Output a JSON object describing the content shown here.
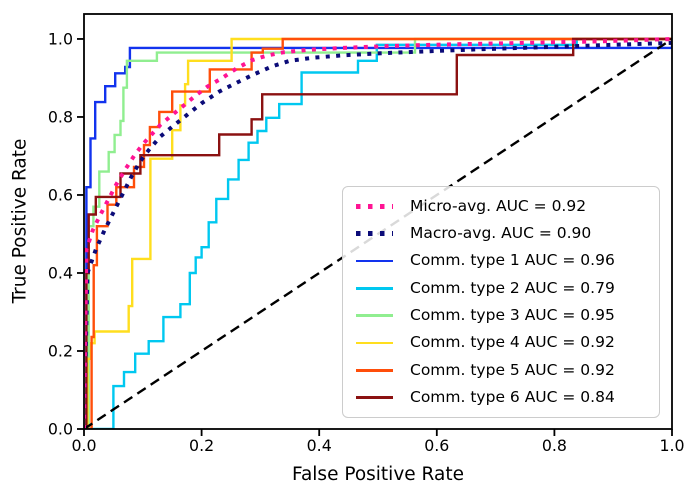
{
  "chart_data": {
    "type": "line",
    "title": "",
    "xlabel": "False Positive Rate",
    "ylabel": "True Positive Rate",
    "xlim": [
      0.0,
      1.0
    ],
    "ylim": [
      0.0,
      1.064
    ],
    "xticks": [
      "0.0",
      "0.2",
      "0.4",
      "0.6",
      "0.8",
      "1.0"
    ],
    "yticks": [
      "0.0",
      "0.2",
      "0.4",
      "0.6",
      "0.8",
      "1.0"
    ],
    "grid": false,
    "legend_position": "center right",
    "series": [
      {
        "name": "Comm. type 1 AUC = 0.96",
        "auc": 0.96,
        "color": "#1233EE",
        "style": "solid",
        "points": [
          [
            0,
            0
          ],
          [
            0.004,
            0
          ],
          [
            0.004,
            0.62
          ],
          [
            0.011,
            0.62
          ],
          [
            0.011,
            0.745
          ],
          [
            0.019,
            0.745
          ],
          [
            0.019,
            0.838
          ],
          [
            0.036,
            0.838
          ],
          [
            0.036,
            0.879
          ],
          [
            0.053,
            0.879
          ],
          [
            0.053,
            0.912
          ],
          [
            0.07,
            0.912
          ],
          [
            0.07,
            0.928
          ],
          [
            0.078,
            0.928
          ],
          [
            0.078,
            0.977
          ],
          [
            1,
            0.977
          ],
          [
            1,
            1
          ]
        ]
      },
      {
        "name": "Comm. type 2 AUC = 0.79",
        "auc": 0.79,
        "color": "#00C8F0",
        "style": "solid",
        "points": [
          [
            0,
            0
          ],
          [
            0.05,
            0
          ],
          [
            0.05,
            0.11
          ],
          [
            0.068,
            0.11
          ],
          [
            0.068,
            0.146
          ],
          [
            0.087,
            0.146
          ],
          [
            0.087,
            0.193
          ],
          [
            0.11,
            0.193
          ],
          [
            0.11,
            0.225
          ],
          [
            0.135,
            0.225
          ],
          [
            0.135,
            0.287
          ],
          [
            0.164,
            0.287
          ],
          [
            0.164,
            0.32
          ],
          [
            0.18,
            0.32
          ],
          [
            0.18,
            0.4
          ],
          [
            0.19,
            0.4
          ],
          [
            0.19,
            0.44
          ],
          [
            0.2,
            0.44
          ],
          [
            0.2,
            0.466
          ],
          [
            0.212,
            0.466
          ],
          [
            0.212,
            0.53
          ],
          [
            0.225,
            0.53
          ],
          [
            0.225,
            0.59
          ],
          [
            0.245,
            0.59
          ],
          [
            0.245,
            0.64
          ],
          [
            0.263,
            0.64
          ],
          [
            0.263,
            0.69
          ],
          [
            0.28,
            0.69
          ],
          [
            0.28,
            0.734
          ],
          [
            0.295,
            0.734
          ],
          [
            0.295,
            0.764
          ],
          [
            0.31,
            0.764
          ],
          [
            0.31,
            0.798
          ],
          [
            0.332,
            0.798
          ],
          [
            0.332,
            0.833
          ],
          [
            0.37,
            0.833
          ],
          [
            0.37,
            0.914
          ],
          [
            0.466,
            0.914
          ],
          [
            0.466,
            0.944
          ],
          [
            0.498,
            0.944
          ],
          [
            0.498,
            0.985
          ],
          [
            0.838,
            0.985
          ],
          [
            0.838,
            1
          ],
          [
            1,
            1
          ]
        ]
      },
      {
        "name": "Comm. type 3 AUC = 0.95",
        "auc": 0.95,
        "color": "#90EE90",
        "style": "solid",
        "points": [
          [
            0,
            0
          ],
          [
            0.008,
            0
          ],
          [
            0.008,
            0.52
          ],
          [
            0.016,
            0.52
          ],
          [
            0.016,
            0.57
          ],
          [
            0.026,
            0.57
          ],
          [
            0.026,
            0.66
          ],
          [
            0.042,
            0.66
          ],
          [
            0.042,
            0.71
          ],
          [
            0.052,
            0.71
          ],
          [
            0.052,
            0.754
          ],
          [
            0.062,
            0.754
          ],
          [
            0.062,
            0.79
          ],
          [
            0.067,
            0.79
          ],
          [
            0.067,
            0.875
          ],
          [
            0.073,
            0.875
          ],
          [
            0.073,
            0.944
          ],
          [
            0.124,
            0.944
          ],
          [
            0.124,
            0.965
          ],
          [
            0.563,
            0.965
          ],
          [
            0.563,
            1
          ],
          [
            1,
            1
          ]
        ]
      },
      {
        "name": "Comm. type 4 AUC = 0.92",
        "auc": 0.92,
        "color": "#FFDE1E",
        "style": "solid",
        "points": [
          [
            0,
            0
          ],
          [
            0.006,
            0
          ],
          [
            0.006,
            0.18
          ],
          [
            0.012,
            0.18
          ],
          [
            0.012,
            0.22
          ],
          [
            0.018,
            0.22
          ],
          [
            0.018,
            0.25
          ],
          [
            0.076,
            0.25
          ],
          [
            0.076,
            0.315
          ],
          [
            0.082,
            0.315
          ],
          [
            0.082,
            0.436
          ],
          [
            0.113,
            0.436
          ],
          [
            0.113,
            0.693
          ],
          [
            0.15,
            0.693
          ],
          [
            0.15,
            0.766
          ],
          [
            0.164,
            0.766
          ],
          [
            0.164,
            0.83
          ],
          [
            0.172,
            0.83
          ],
          [
            0.172,
            0.884
          ],
          [
            0.177,
            0.884
          ],
          [
            0.177,
            0.944
          ],
          [
            0.251,
            0.944
          ],
          [
            0.251,
            1
          ],
          [
            1,
            1
          ]
        ]
      },
      {
        "name": "Comm. type 5 AUC = 0.92",
        "auc": 0.92,
        "color": "#FF4E0A",
        "style": "solid",
        "points": [
          [
            0,
            0
          ],
          [
            0.013,
            0
          ],
          [
            0.013,
            0.236
          ],
          [
            0.0165,
            0.236
          ],
          [
            0.0165,
            0.42
          ],
          [
            0.022,
            0.42
          ],
          [
            0.022,
            0.52
          ],
          [
            0.04,
            0.52
          ],
          [
            0.04,
            0.575
          ],
          [
            0.055,
            0.575
          ],
          [
            0.055,
            0.62
          ],
          [
            0.085,
            0.62
          ],
          [
            0.085,
            0.672
          ],
          [
            0.102,
            0.672
          ],
          [
            0.102,
            0.728
          ],
          [
            0.112,
            0.728
          ],
          [
            0.112,
            0.774
          ],
          [
            0.128,
            0.774
          ],
          [
            0.128,
            0.813
          ],
          [
            0.15,
            0.813
          ],
          [
            0.15,
            0.865
          ],
          [
            0.214,
            0.865
          ],
          [
            0.214,
            0.922
          ],
          [
            0.285,
            0.922
          ],
          [
            0.285,
            0.965
          ],
          [
            0.304,
            0.965
          ],
          [
            0.304,
            0.975
          ],
          [
            0.338,
            0.975
          ],
          [
            0.338,
            1
          ],
          [
            1,
            1
          ]
        ]
      },
      {
        "name": "Comm. type 6 AUC = 0.84",
        "auc": 0.84,
        "color": "#8B1111",
        "style": "solid",
        "points": [
          [
            0,
            0
          ],
          [
            0.004,
            0
          ],
          [
            0.004,
            0.4
          ],
          [
            0.008,
            0.4
          ],
          [
            0.008,
            0.55
          ],
          [
            0.02,
            0.55
          ],
          [
            0.02,
            0.595
          ],
          [
            0.062,
            0.595
          ],
          [
            0.062,
            0.655
          ],
          [
            0.096,
            0.655
          ],
          [
            0.096,
            0.702
          ],
          [
            0.23,
            0.702
          ],
          [
            0.23,
            0.755
          ],
          [
            0.285,
            0.755
          ],
          [
            0.285,
            0.794
          ],
          [
            0.303,
            0.794
          ],
          [
            0.303,
            0.858
          ],
          [
            0.634,
            0.858
          ],
          [
            0.634,
            0.959
          ],
          [
            0.832,
            0.959
          ],
          [
            0.832,
            1
          ],
          [
            1,
            1
          ]
        ]
      },
      {
        "name": "chance-diagonal",
        "color": "#000000",
        "style": "dashed",
        "points": [
          [
            0,
            0
          ],
          [
            1,
            1
          ]
        ]
      },
      {
        "name": "Macro-avg. AUC = 0.90",
        "auc": 0.9,
        "color": "#0B0B78",
        "style": "dotted",
        "points": [
          [
            0,
            0
          ],
          [
            0.006,
            0.4
          ],
          [
            0.02,
            0.46
          ],
          [
            0.035,
            0.51
          ],
          [
            0.05,
            0.555
          ],
          [
            0.065,
            0.6
          ],
          [
            0.08,
            0.645
          ],
          [
            0.095,
            0.685
          ],
          [
            0.11,
            0.715
          ],
          [
            0.13,
            0.75
          ],
          [
            0.15,
            0.775
          ],
          [
            0.175,
            0.805
          ],
          [
            0.2,
            0.835
          ],
          [
            0.23,
            0.865
          ],
          [
            0.26,
            0.888
          ],
          [
            0.29,
            0.91
          ],
          [
            0.32,
            0.93
          ],
          [
            0.35,
            0.944
          ],
          [
            0.39,
            0.952
          ],
          [
            0.44,
            0.958
          ],
          [
            0.5,
            0.963
          ],
          [
            0.58,
            0.968
          ],
          [
            0.68,
            0.974
          ],
          [
            0.8,
            0.98
          ],
          [
            0.92,
            0.986
          ],
          [
            1,
            0.99
          ],
          [
            1,
            1
          ]
        ]
      },
      {
        "name": "Micro-avg. AUC = 0.92",
        "auc": 0.92,
        "color": "#FF1493",
        "style": "dotted",
        "points": [
          [
            0,
            0
          ],
          [
            0.004,
            0.46
          ],
          [
            0.015,
            0.51
          ],
          [
            0.028,
            0.55
          ],
          [
            0.042,
            0.59
          ],
          [
            0.056,
            0.63
          ],
          [
            0.07,
            0.665
          ],
          [
            0.085,
            0.7
          ],
          [
            0.1,
            0.73
          ],
          [
            0.115,
            0.755
          ],
          [
            0.13,
            0.78
          ],
          [
            0.15,
            0.805
          ],
          [
            0.17,
            0.83
          ],
          [
            0.19,
            0.855
          ],
          [
            0.21,
            0.878
          ],
          [
            0.235,
            0.9
          ],
          [
            0.26,
            0.925
          ],
          [
            0.285,
            0.945
          ],
          [
            0.31,
            0.957
          ],
          [
            0.34,
            0.966
          ],
          [
            0.38,
            0.972
          ],
          [
            0.44,
            0.977
          ],
          [
            0.52,
            0.982
          ],
          [
            0.62,
            0.986
          ],
          [
            0.75,
            0.99
          ],
          [
            0.88,
            0.994
          ],
          [
            1,
            1
          ]
        ]
      }
    ]
  },
  "legend": {
    "entries": [
      {
        "label": "Micro-avg. AUC = 0.92",
        "color": "#FF1493",
        "style": "dotted"
      },
      {
        "label": "Macro-avg. AUC = 0.90",
        "color": "#0B0B78",
        "style": "dotted"
      },
      {
        "label": "Comm. type 1 AUC = 0.96",
        "color": "#1233EE",
        "style": "solid"
      },
      {
        "label": "Comm. type 2 AUC = 0.79",
        "color": "#00C8F0",
        "style": "solid"
      },
      {
        "label": "Comm. type 3 AUC = 0.95",
        "color": "#90EE90",
        "style": "solid"
      },
      {
        "label": "Comm. type 4 AUC = 0.92",
        "color": "#FFDE1E",
        "style": "solid"
      },
      {
        "label": "Comm. type 5 AUC = 0.92",
        "color": "#FF4E0A",
        "style": "solid"
      },
      {
        "label": "Comm. type 6 AUC = 0.84",
        "color": "#8B1111",
        "style": "solid"
      }
    ]
  },
  "colors": {
    "spine": "#000000",
    "tick_label": "#000000",
    "legend_border": "#cccccc"
  }
}
